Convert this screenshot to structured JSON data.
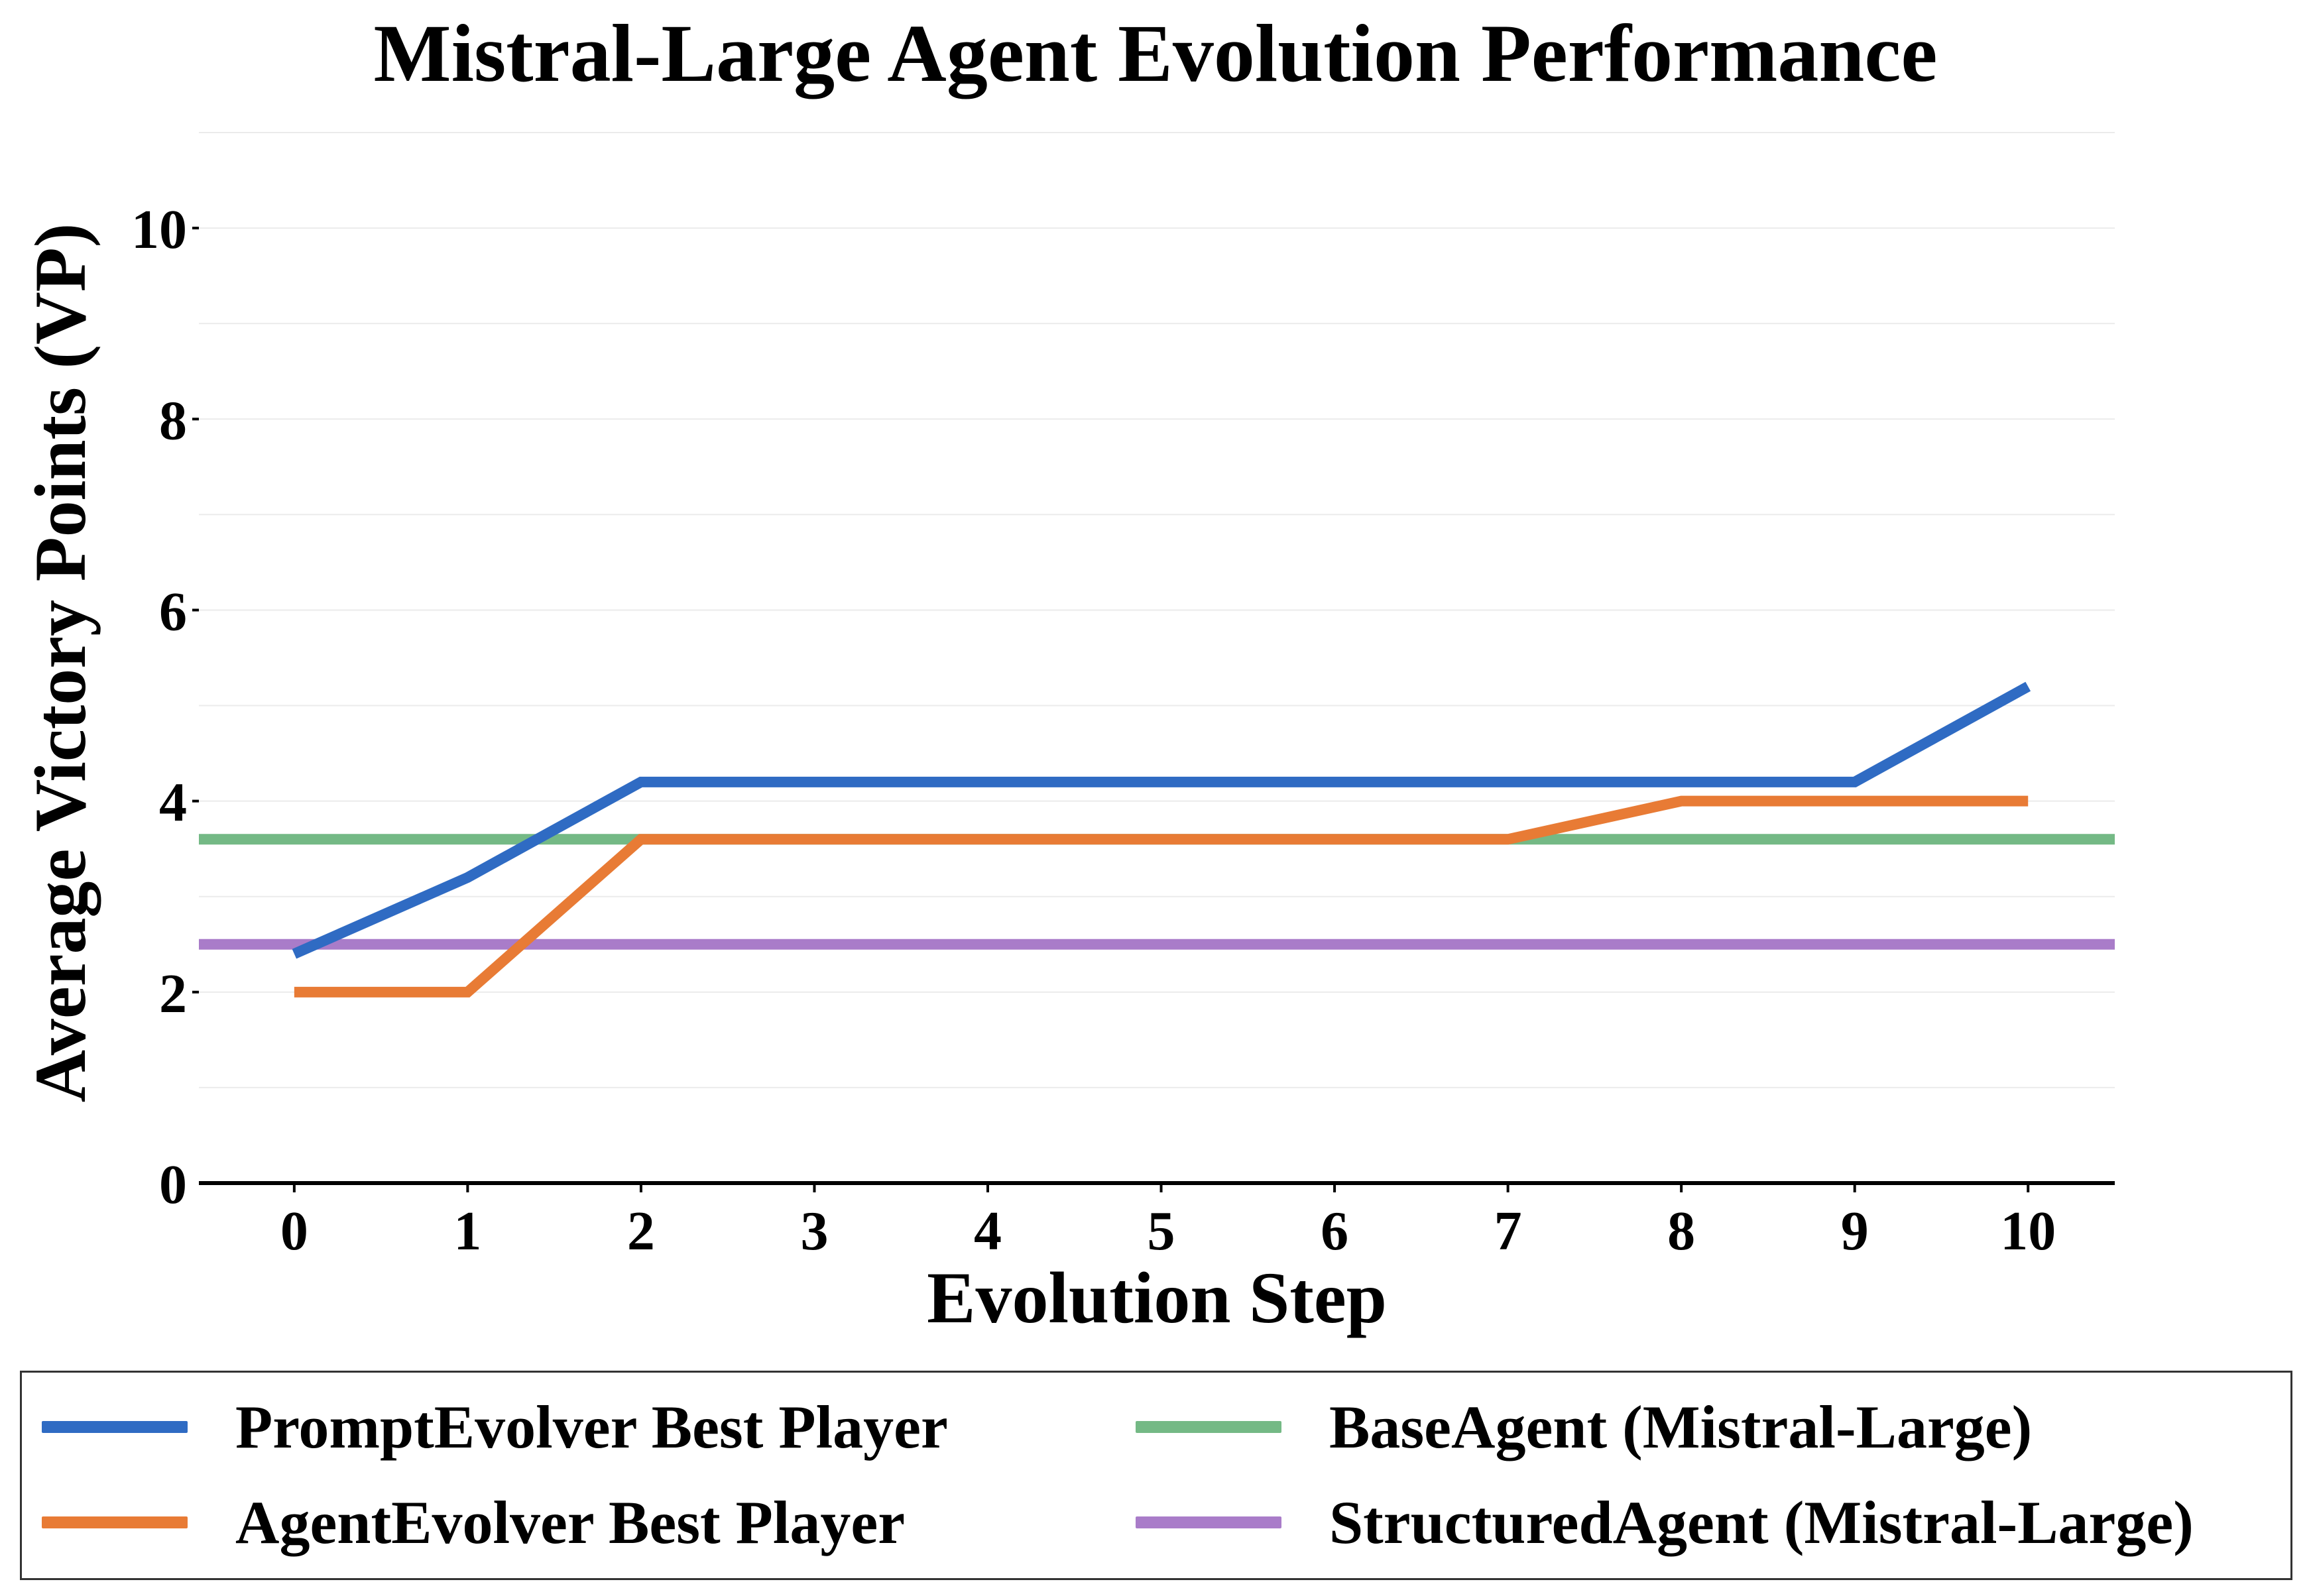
{
  "chart_data": {
    "type": "line",
    "title": "Mistral-Large Agent Evolution Performance",
    "xlabel": "Evolution Step",
    "ylabel": "Average Victory Points (VP)",
    "x": [
      0,
      1,
      2,
      3,
      4,
      5,
      6,
      7,
      8,
      9,
      10
    ],
    "xlim": [
      -0.55,
      10.5
    ],
    "ylim": [
      0,
      11
    ],
    "xticks": [
      "0",
      "1",
      "2",
      "3",
      "4",
      "5",
      "6",
      "7",
      "8",
      "9",
      "10"
    ],
    "yticks": [
      {
        "value": 0,
        "label": "0"
      },
      {
        "value": 2,
        "label": "2"
      },
      {
        "value": 4,
        "label": "4"
      },
      {
        "value": 6,
        "label": "6"
      },
      {
        "value": 8,
        "label": "8"
      },
      {
        "value": 10,
        "label": "10"
      }
    ],
    "grid": true,
    "legend_position": "bottom",
    "series": [
      {
        "name": "PromptEvolver Best Player",
        "color": "#2f6bc3",
        "kind": "line",
        "values": [
          2.4,
          3.2,
          4.2,
          4.2,
          4.2,
          4.2,
          4.2,
          4.2,
          4.2,
          4.2,
          5.2
        ]
      },
      {
        "name": "AgentEvolver Best Player",
        "color": "#e87b35",
        "kind": "line",
        "values": [
          2.0,
          2.0,
          3.6,
          3.6,
          3.6,
          3.6,
          3.6,
          3.6,
          4.0,
          4.0,
          4.0
        ]
      },
      {
        "name": "BaseAgent (Mistral-Large)",
        "color": "#74b985",
        "kind": "hline",
        "value": 3.6
      },
      {
        "name": "StructuredAgent (Mistral-Large)",
        "color": "#a97cc9",
        "kind": "hline",
        "value": 2.5
      }
    ]
  }
}
